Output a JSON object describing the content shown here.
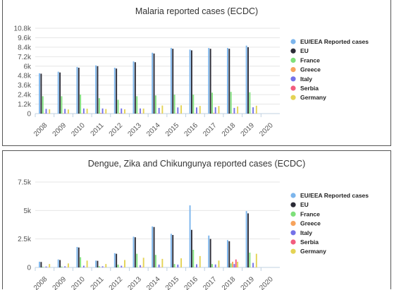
{
  "colors": {
    "EU/EEA Reported cases": "#7cb5ec",
    "EU": "#2b2b36",
    "France": "#7ee07a",
    "Greece": "#f7a35c",
    "Italy": "#7471e8",
    "Serbia": "#f25c7e",
    "Germany": "#e4d354"
  },
  "chart_data": [
    {
      "type": "bar",
      "title": "Malaria reported cases (ECDC)",
      "categories": [
        "2008",
        "2009",
        "2010",
        "2011",
        "2012",
        "2013",
        "2014",
        "2015",
        "2016",
        "2017",
        "2018",
        "2019",
        "2020"
      ],
      "yticks": [
        "0",
        "1.2k",
        "2.4k",
        "3.6k",
        "4.8k",
        "6k",
        "7.2k",
        "8.4k",
        "9.6k",
        "10.8k"
      ],
      "ylim": [
        0,
        10800
      ],
      "legend_position": "right",
      "series": [
        {
          "name": "EU/EEA Reported cases",
          "values": [
            5100,
            5300,
            5900,
            6100,
            5800,
            6600,
            7700,
            8300,
            8100,
            8300,
            8300,
            8600,
            0
          ]
        },
        {
          "name": "EU",
          "values": [
            5050,
            5200,
            5800,
            6000,
            5700,
            6500,
            7600,
            8200,
            8000,
            8200,
            8200,
            8400,
            0
          ]
        },
        {
          "name": "France",
          "values": [
            2200,
            2200,
            2400,
            1950,
            1750,
            2200,
            2300,
            2400,
            2400,
            2650,
            2750,
            2700,
            0
          ]
        },
        {
          "name": "Greece",
          "values": [
            50,
            50,
            50,
            90,
            80,
            60,
            40,
            40,
            40,
            100,
            50,
            40,
            0
          ]
        },
        {
          "name": "Italy",
          "values": [
            600,
            600,
            650,
            650,
            650,
            650,
            720,
            780,
            780,
            800,
            720,
            800,
            0
          ]
        },
        {
          "name": "Serbia",
          "values": [
            20,
            20,
            20,
            20,
            20,
            20,
            20,
            20,
            20,
            20,
            20,
            20,
            0
          ]
        },
        {
          "name": "Germany",
          "values": [
            550,
            520,
            620,
            580,
            550,
            640,
            1020,
            1050,
            970,
            960,
            900,
            1000,
            0
          ]
        }
      ]
    },
    {
      "type": "bar",
      "title": "Dengue, Zika and Chikungunya reported cases (ECDC)",
      "categories": [
        "2008",
        "2009",
        "2010",
        "2011",
        "2012",
        "2013",
        "2014",
        "2015",
        "2016",
        "2017",
        "2018",
        "2019",
        "2020"
      ],
      "yticks": [
        "0",
        "2.5k",
        "5k",
        "7.5k"
      ],
      "ylim": [
        0,
        7500
      ],
      "legend_position": "right",
      "series": [
        {
          "name": "EU/EEA Reported cases",
          "values": [
            500,
            700,
            1800,
            600,
            1250,
            2700,
            3600,
            2950,
            5450,
            2800,
            2400,
            4950,
            0
          ]
        },
        {
          "name": "EU",
          "values": [
            480,
            650,
            1750,
            580,
            1200,
            2650,
            3550,
            2850,
            3300,
            2500,
            2300,
            4750,
            0
          ]
        },
        {
          "name": "France",
          "values": [
            50,
            80,
            900,
            100,
            250,
            1200,
            1100,
            300,
            1550,
            300,
            350,
            1300,
            0
          ]
        },
        {
          "name": "Greece",
          "values": [
            10,
            10,
            10,
            10,
            10,
            20,
            10,
            10,
            10,
            10,
            500,
            10,
            0
          ]
        },
        {
          "name": "Italy",
          "values": [
            80,
            100,
            150,
            100,
            150,
            200,
            250,
            250,
            280,
            260,
            300,
            400,
            0
          ]
        },
        {
          "name": "Serbia",
          "values": [
            10,
            10,
            10,
            10,
            10,
            30,
            20,
            10,
            10,
            10,
            700,
            10,
            0
          ]
        },
        {
          "name": "Germany",
          "values": [
            300,
            350,
            600,
            300,
            650,
            850,
            750,
            800,
            1000,
            600,
            500,
            1200,
            0
          ]
        }
      ]
    }
  ]
}
